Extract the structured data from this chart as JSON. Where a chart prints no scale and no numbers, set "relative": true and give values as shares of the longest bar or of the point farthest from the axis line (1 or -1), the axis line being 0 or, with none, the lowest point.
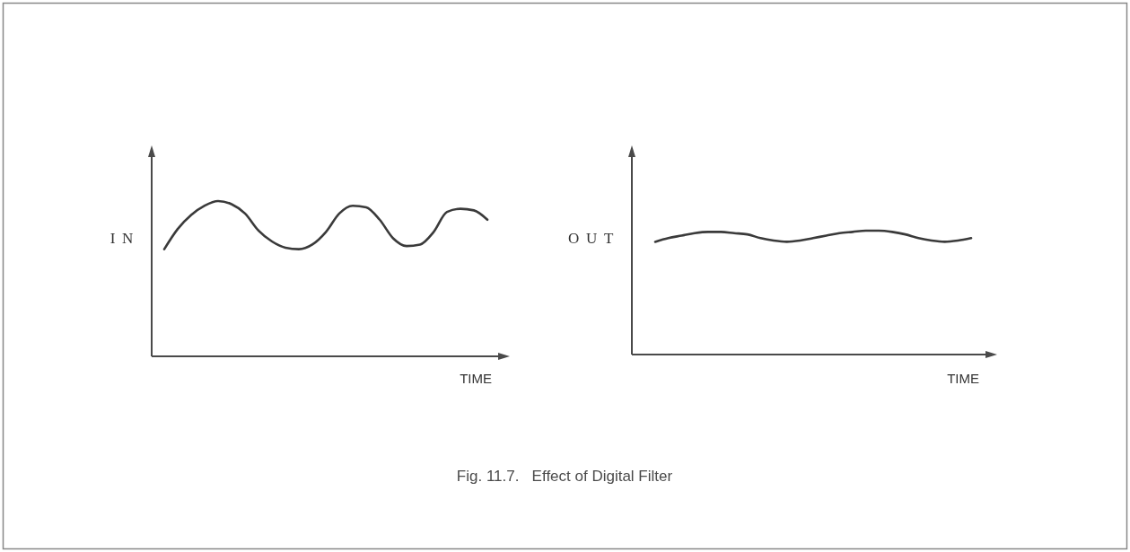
{
  "chart_data": [
    {
      "type": "line",
      "title": "Fig. 11.7.   Effect of Digital Filter",
      "ylabel": "IN",
      "xlabel": "TIME",
      "relative": true,
      "categories": [
        null,
        null,
        null,
        null,
        null,
        null,
        null,
        null,
        null,
        null,
        null,
        null,
        null,
        null,
        null,
        null,
        null,
        null,
        null,
        null,
        null,
        null,
        null,
        null,
        null
      ],
      "series": [
        {
          "color": "#3a3a3a",
          "values": [
            0.69,
            0.82,
            0.91,
            0.97,
            1.0,
            0.98,
            0.92,
            0.81,
            0.74,
            0.7,
            0.69,
            0.72,
            0.8,
            0.92,
            0.97,
            0.96,
            0.88,
            0.76,
            0.71,
            0.72,
            0.8,
            0.93,
            0.95,
            0.94,
            0.88
          ]
        }
      ]
    },
    {
      "type": "line",
      "ylabel": "OUT",
      "xlabel": "TIME",
      "relative": true,
      "categories": [
        null,
        null,
        null,
        null,
        null,
        null,
        null,
        null,
        null,
        null,
        null,
        null,
        null,
        null,
        null,
        null,
        null,
        null,
        null,
        null,
        null,
        null,
        null,
        null,
        null
      ],
      "series": [
        {
          "color": "#3a3a3a",
          "values": [
            0.91,
            0.94,
            0.96,
            0.98,
            0.99,
            0.99,
            0.98,
            0.97,
            0.94,
            0.92,
            0.91,
            0.92,
            0.94,
            0.96,
            0.98,
            0.99,
            1.0,
            1.0,
            0.99,
            0.97,
            0.94,
            0.92,
            0.91,
            0.92,
            0.94
          ]
        }
      ]
    }
  ]
}
